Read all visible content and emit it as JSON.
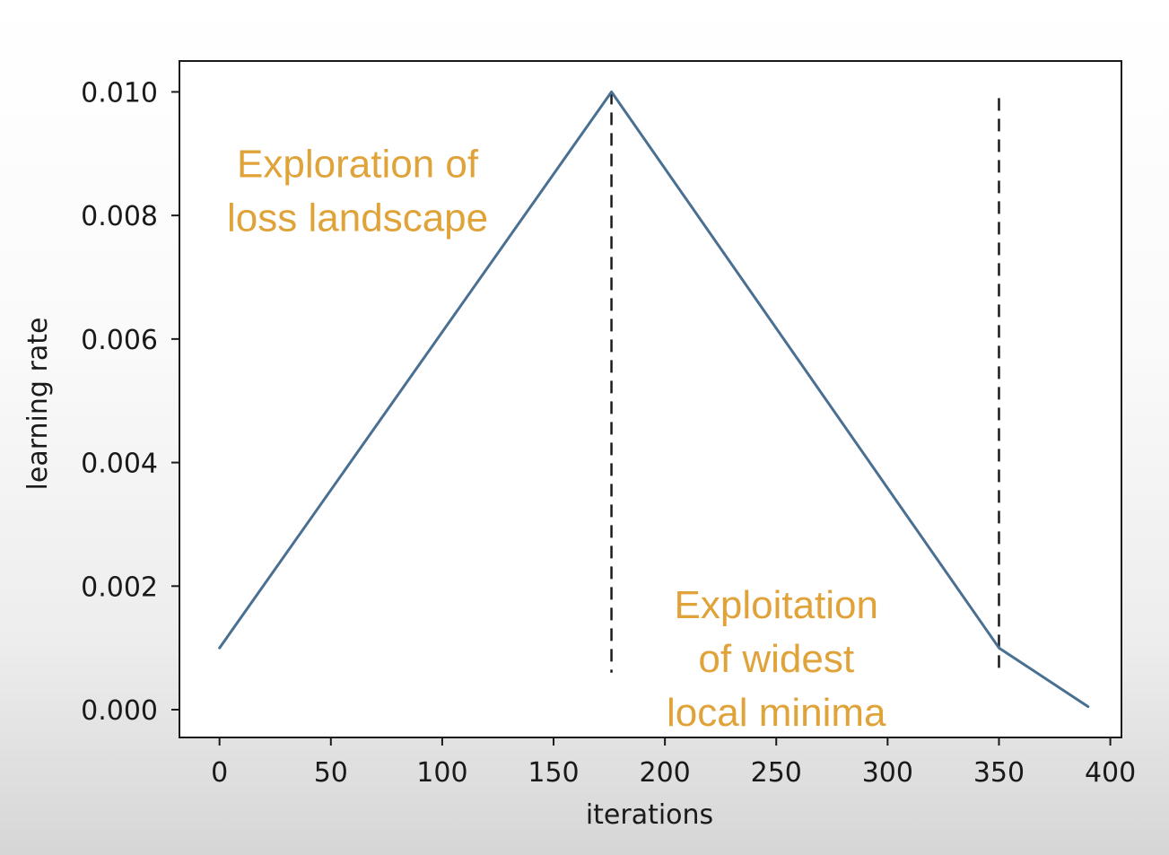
{
  "chart_data": {
    "type": "line",
    "title": "",
    "xlabel": "iterations",
    "ylabel": "learning rate",
    "xlim": [
      -18,
      405
    ],
    "ylim": [
      -0.00045,
      0.0105
    ],
    "xticks": [
      0,
      50,
      100,
      150,
      200,
      250,
      300,
      350,
      400
    ],
    "xtick_labels": [
      "0",
      "50",
      "100",
      "150",
      "200",
      "250",
      "300",
      "350",
      "400"
    ],
    "yticks": [
      0.0,
      0.002,
      0.004,
      0.006,
      0.008,
      0.01
    ],
    "ytick_labels": [
      "0.000",
      "0.002",
      "0.004",
      "0.006",
      "0.008",
      "0.010"
    ],
    "grid": false,
    "legend": "none",
    "series": [
      {
        "x": [
          0,
          176,
          350,
          390
        ],
        "y": [
          0.001,
          0.01,
          0.001,
          5e-05
        ],
        "color": "#4a7091"
      }
    ],
    "vlines": [
      {
        "x": 176,
        "y_from": 0.0006,
        "y_to": 0.01,
        "style": "dashed",
        "color": "#1a1a1a"
      },
      {
        "x": 350,
        "y_from": 0.0006,
        "y_to": 0.0099,
        "style": "dashed",
        "color": "#1a1a1a"
      }
    ],
    "annotations": [
      {
        "lines": [
          "Exploration of",
          "loss landscape"
        ],
        "x": 62,
        "y": 0.00862,
        "color": "#e0a33a"
      },
      {
        "lines": [
          "Exploitation",
          "of widest",
          "local minima"
        ],
        "x": 250,
        "y": 0.00148,
        "color": "#e0a33a"
      }
    ]
  }
}
